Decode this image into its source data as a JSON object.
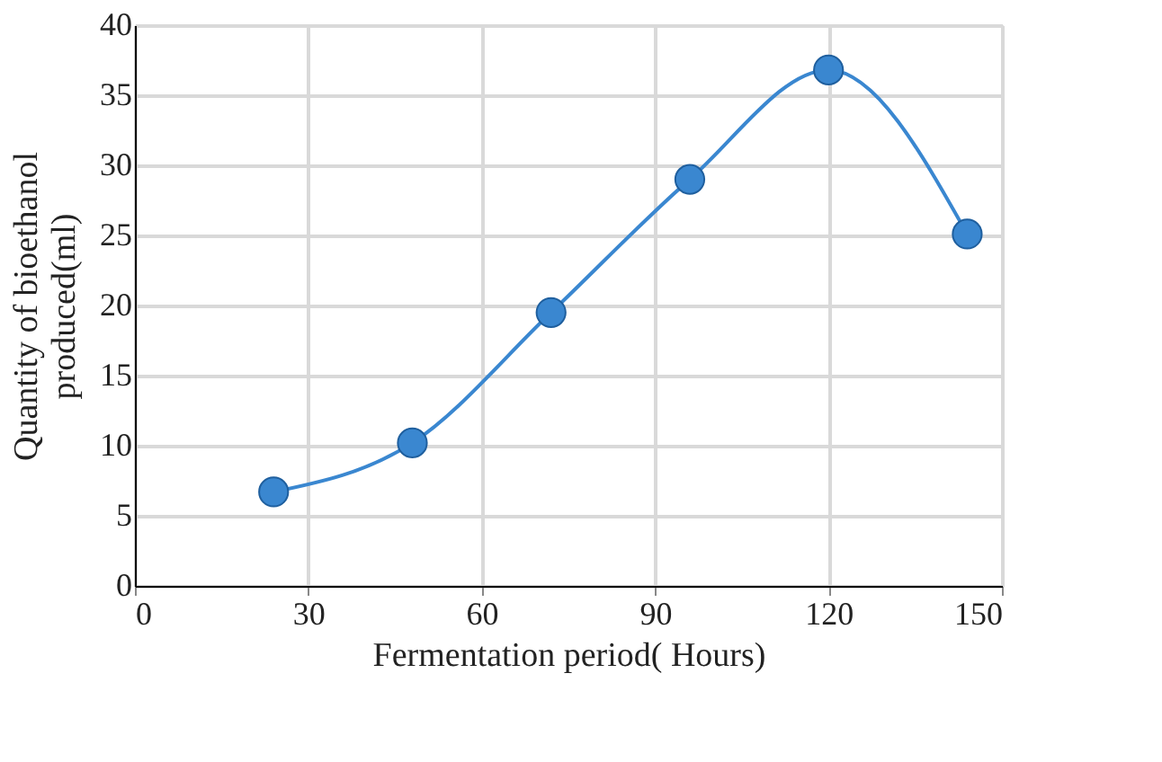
{
  "chart_data": {
    "type": "line",
    "xlabel": "Fermentation period( Hours)",
    "ylabel": "Quantity of  bioethanol\nproduced(ml)",
    "x": [
      24,
      48,
      72,
      96,
      120,
      144
    ],
    "series": [
      {
        "color": "#3a87d0",
        "values": [
          6.7,
          10.2,
          19.5,
          29,
          36.8,
          25.1
        ]
      }
    ],
    "xlim": [
      0,
      150
    ],
    "xticks": [
      0,
      30,
      60,
      90,
      120,
      150
    ],
    "ylim": [
      0,
      40
    ],
    "yticks": [
      0,
      5,
      10,
      15,
      20,
      25,
      30,
      35,
      40
    ],
    "grid": true,
    "marker": "circle",
    "line_style": "solid"
  }
}
